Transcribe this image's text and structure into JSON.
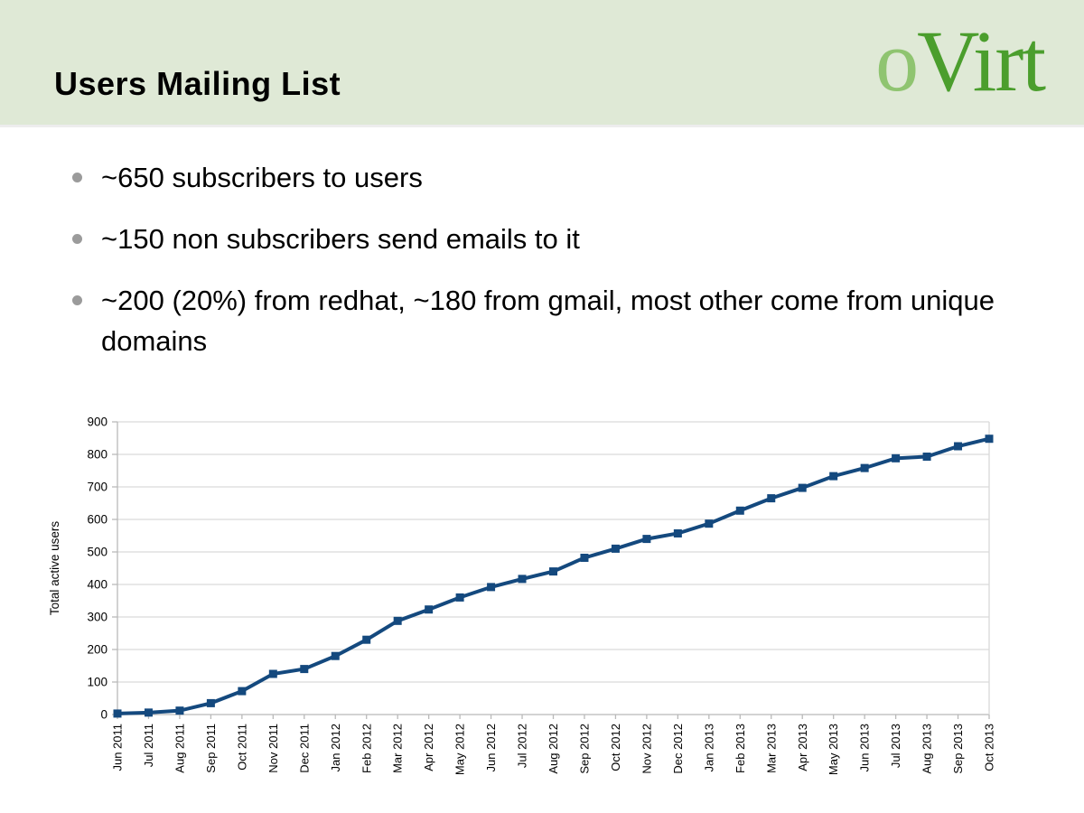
{
  "header": {
    "title": "Users Mailing List",
    "logo": {
      "o": "o",
      "rest": "Virt"
    }
  },
  "bullets": [
    "~650 subscribers to users",
    "~150 non subscribers send emails to it",
    "~200 (20%) from redhat, ~180 from gmail, most other come from unique domains"
  ],
  "colors": {
    "header_bg": "#dfe9d6",
    "logo_o": "#8fc470",
    "logo_rest": "#4b9e2d",
    "bullet_dot": "#9b9b9b",
    "series_line": "#14497e",
    "gridline": "#d9d9d9",
    "axis_line": "#b9b9b9"
  },
  "chart_data": {
    "type": "line",
    "title": "",
    "xlabel": "",
    "ylabel": "Total active users",
    "ylim": [
      0,
      900
    ],
    "ytick_step": 100,
    "grid": true,
    "legend_position": "none",
    "marker": "square",
    "categories": [
      "Jun 2011",
      "Jul 2011",
      "Aug 2011",
      "Sep 2011",
      "Oct 2011",
      "Nov 2011",
      "Dec 2011",
      "Jan 2012",
      "Feb 2012",
      "Mar 2012",
      "Apr 2012",
      "May 2012",
      "Jun 2012",
      "Jul 2012",
      "Aug 2012",
      "Sep 2012",
      "Oct 2012",
      "Nov 2012",
      "Dec 2012",
      "Jan 2013",
      "Feb 2013",
      "Mar 2013",
      "Apr 2013",
      "May 2013",
      "Jun 2013",
      "Jul 2013",
      "Aug 2013",
      "Sep 2013",
      "Oct 2013"
    ],
    "series": [
      {
        "name": "Total active users",
        "values": [
          3,
          6,
          12,
          35,
          72,
          125,
          140,
          180,
          230,
          288,
          323,
          360,
          392,
          417,
          440,
          482,
          510,
          540,
          557,
          587,
          627,
          665,
          697,
          733,
          758,
          788,
          793,
          825,
          848
        ]
      }
    ]
  }
}
